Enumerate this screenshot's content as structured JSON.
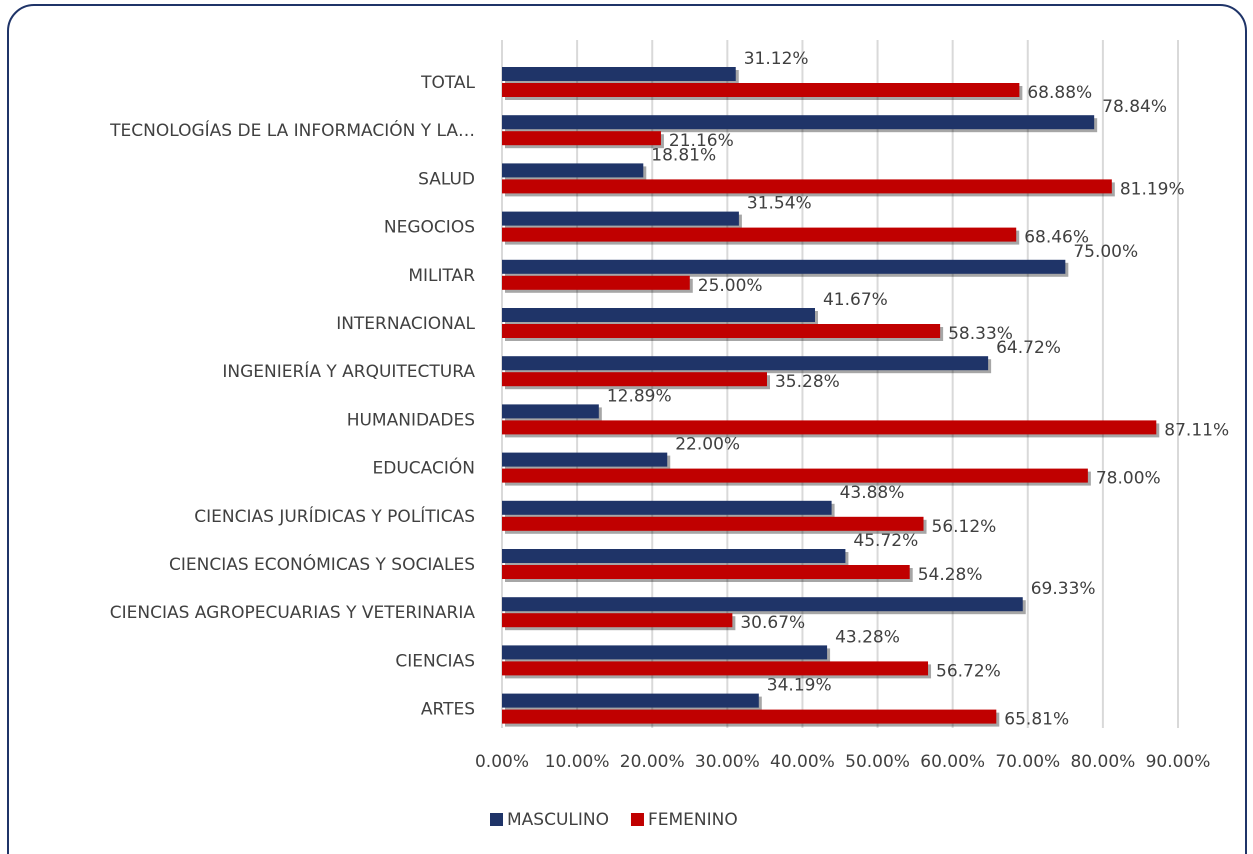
{
  "chart_data": {
    "type": "bar",
    "orientation": "horizontal",
    "categories": [
      "TOTAL",
      "TECNOLOGÍAS DE LA INFORMACIÓN Y LA…",
      "SALUD",
      "NEGOCIOS",
      "MILITAR",
      "INTERNACIONAL",
      "INGENIERÍA Y ARQUITECTURA",
      "HUMANIDADES",
      "EDUCACIÓN",
      "CIENCIAS JURÍDICAS Y POLÍTICAS",
      "CIENCIAS ECONÓMICAS Y SOCIALES",
      "CIENCIAS AGROPECUARIAS Y VETERINARIA",
      "CIENCIAS",
      "ARTES"
    ],
    "series": [
      {
        "name": "MASCULINO",
        "color": "#1f3468",
        "values": [
          31.12,
          78.84,
          18.81,
          31.54,
          75.0,
          41.67,
          64.72,
          12.89,
          22.0,
          43.88,
          45.72,
          69.33,
          43.28,
          34.19
        ],
        "value_labels": [
          "31.12%",
          "78.84%",
          "18.81%",
          "31.54%",
          "75.00%",
          "41.67%",
          "64.72%",
          "12.89%",
          "22.00%",
          "43.88%",
          "45.72%",
          "69.33%",
          "43.28%",
          "34.19%"
        ]
      },
      {
        "name": "FEMENINO",
        "color": "#c00000",
        "values": [
          68.88,
          21.16,
          81.19,
          68.46,
          25.0,
          58.33,
          35.28,
          87.11,
          78.0,
          56.12,
          54.28,
          30.67,
          56.72,
          65.81
        ],
        "value_labels": [
          "68.88%",
          "21.16%",
          "81.19%",
          "68.46%",
          "25.00%",
          "58.33%",
          "35.28%",
          "87.11%",
          "78.00%",
          "56.12%",
          "54.28%",
          "30.67%",
          "56.72%",
          "65.81%"
        ]
      }
    ],
    "xlim": [
      0,
      90
    ],
    "xticks": [
      {
        "value": 0,
        "label": "0.00%"
      },
      {
        "value": 10,
        "label": "10.00%"
      },
      {
        "value": 20,
        "label": "20.00%"
      },
      {
        "value": 30,
        "label": "30.00%"
      },
      {
        "value": 40,
        "label": "40.00%"
      },
      {
        "value": 50,
        "label": "50.00%"
      },
      {
        "value": 60,
        "label": "60.00%"
      },
      {
        "value": 70,
        "label": "70.00%"
      },
      {
        "value": 80,
        "label": "80.00%"
      },
      {
        "value": 90,
        "label": "90.00%"
      }
    ],
    "grid": true,
    "legend": "bottom"
  }
}
